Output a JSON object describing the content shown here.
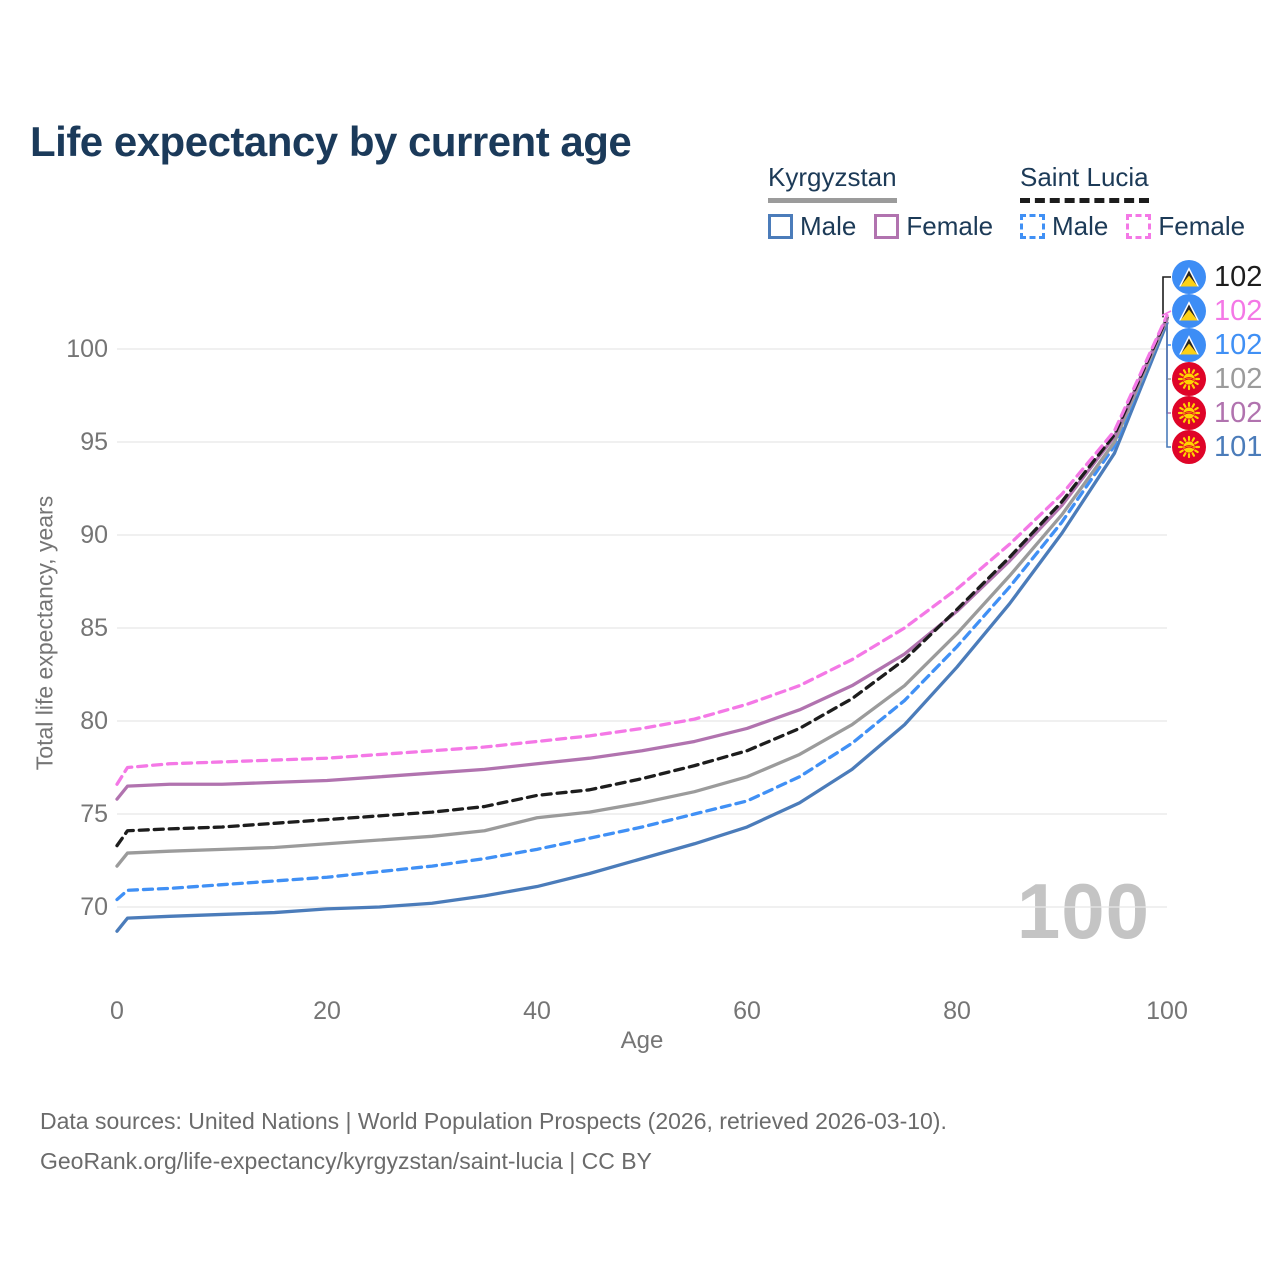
{
  "title": "Life expectancy by current age",
  "watermark": "100",
  "legend": {
    "groups": [
      {
        "name": "Kyrgyzstan",
        "line_style": "solid",
        "underline_color": "#9b9b9b",
        "items": [
          {
            "label": "Male",
            "color": "#4b7cba",
            "dash": "solid"
          },
          {
            "label": "Female",
            "color": "#b173af",
            "dash": "solid"
          }
        ]
      },
      {
        "name": "Saint Lucia",
        "line_style": "dashed",
        "underline_color": "#1d1d1d",
        "items": [
          {
            "label": "Male",
            "color": "#4090f5",
            "dash": "dashed"
          },
          {
            "label": "Female",
            "color": "#f478e6",
            "dash": "dashed"
          }
        ]
      }
    ]
  },
  "axes": {
    "y_title": "Total life expectancy, years",
    "x_title": "Age",
    "y_ticks": [
      70,
      75,
      80,
      85,
      90,
      95,
      100
    ],
    "x_ticks": [
      0,
      20,
      40,
      60,
      80,
      100
    ]
  },
  "right_labels": [
    {
      "flag": "saint-lucia",
      "series_id": "sl-total",
      "value": "102",
      "color": "#1d1d1d"
    },
    {
      "flag": "saint-lucia",
      "series_id": "sl-female",
      "value": "102",
      "color": "#f478e6"
    },
    {
      "flag": "saint-lucia",
      "series_id": "sl-male",
      "value": "102",
      "color": "#4090f5"
    },
    {
      "flag": "kyrgyzstan",
      "series_id": "kg-total",
      "value": "102",
      "color": "#9b9b9b"
    },
    {
      "flag": "kyrgyzstan",
      "series_id": "kg-female",
      "value": "102",
      "color": "#b173af"
    },
    {
      "flag": "kyrgyzstan",
      "series_id": "kg-male",
      "value": "101",
      "color": "#4b7cba"
    }
  ],
  "chart_data": {
    "type": "line",
    "title": "Life expectancy by current age",
    "xlabel": "Age",
    "ylabel": "Total life expectancy, years",
    "xlim": [
      0,
      100
    ],
    "ylim": [
      68,
      103
    ],
    "grid": "horizontal",
    "legend_position": "top-right",
    "x": [
      0,
      1,
      5,
      10,
      15,
      20,
      25,
      30,
      35,
      40,
      45,
      50,
      55,
      60,
      65,
      70,
      75,
      80,
      85,
      90,
      95,
      100
    ],
    "series": [
      {
        "id": "kg-male",
        "name": "Kyrgyzstan Male",
        "color": "#4b7cba",
        "dash": "solid",
        "end_label": "101",
        "values": [
          68.7,
          69.4,
          69.5,
          69.6,
          69.7,
          69.9,
          70.0,
          70.2,
          70.6,
          71.1,
          71.8,
          72.6,
          73.4,
          74.3,
          75.6,
          77.4,
          79.8,
          82.9,
          86.3,
          90.1,
          94.4,
          101.4
        ]
      },
      {
        "id": "sl-male",
        "name": "Saint Lucia Male",
        "color": "#4090f5",
        "dash": "dashed",
        "end_label": "102",
        "values": [
          70.4,
          70.9,
          71.0,
          71.2,
          71.4,
          71.6,
          71.9,
          72.2,
          72.6,
          73.1,
          73.7,
          74.3,
          75.0,
          75.7,
          77.0,
          78.8,
          81.1,
          84.0,
          87.2,
          90.7,
          94.8,
          101.6
        ]
      },
      {
        "id": "kg-total",
        "name": "Kyrgyzstan",
        "color": "#9b9b9b",
        "dash": "solid",
        "end_label": "102",
        "values": [
          72.2,
          72.9,
          73.0,
          73.1,
          73.2,
          73.4,
          73.6,
          73.8,
          74.1,
          74.8,
          75.1,
          75.6,
          76.2,
          77.0,
          78.2,
          79.8,
          81.9,
          84.7,
          87.8,
          91.1,
          95.0,
          101.6
        ]
      },
      {
        "id": "kg-female",
        "name": "Kyrgyzstan Female",
        "color": "#b173af",
        "dash": "solid",
        "end_label": "102",
        "values": [
          75.8,
          76.5,
          76.6,
          76.6,
          76.7,
          76.8,
          77.0,
          77.2,
          77.4,
          77.7,
          78.0,
          78.4,
          78.9,
          79.6,
          80.6,
          81.9,
          83.6,
          85.9,
          88.6,
          91.6,
          95.3,
          101.7
        ]
      },
      {
        "id": "sl-total",
        "name": "Saint Lucia",
        "color": "#1d1d1d",
        "dash": "dashed",
        "end_label": "102",
        "values": [
          73.3,
          74.1,
          74.2,
          74.3,
          74.5,
          74.7,
          74.9,
          75.1,
          75.4,
          76.0,
          76.3,
          76.9,
          77.6,
          78.4,
          79.6,
          81.2,
          83.3,
          86.0,
          88.8,
          91.8,
          95.4,
          101.7
        ]
      },
      {
        "id": "sl-female",
        "name": "Saint Lucia Female",
        "color": "#f478e6",
        "dash": "dashed",
        "end_label": "102",
        "values": [
          76.6,
          77.5,
          77.7,
          77.8,
          77.9,
          78.0,
          78.2,
          78.4,
          78.6,
          78.9,
          79.2,
          79.6,
          80.1,
          80.9,
          81.9,
          83.3,
          85.0,
          87.1,
          89.5,
          92.2,
          95.6,
          101.8
        ]
      }
    ]
  },
  "footer": {
    "line1": "Data sources: United Nations | World Population Prospects (2026, retrieved 2026-03-10).",
    "line2": "GeoRank.org/life-expectancy/kyrgyzstan/saint-lucia | CC BY"
  },
  "colors": {
    "title": "#1b3a5a",
    "axis_text": "#757575",
    "gridline": "#e7e7e7",
    "watermark": "#c4c4c4",
    "saint_lucia_flag_blue": "#3d8df5",
    "kyrgyzstan_flag_red": "#df0428"
  }
}
